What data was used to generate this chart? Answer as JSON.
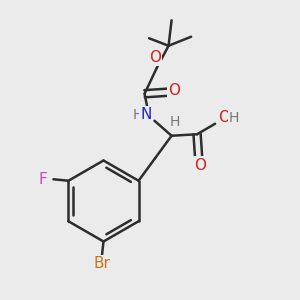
{
  "bg_color": "#ebebeb",
  "line_color": "#2d2d2d",
  "bond_width": 1.8,
  "title": "",
  "colors": {
    "C": "#2d2d2d",
    "N": "#2222cc",
    "O": "#cc2222",
    "F": "#cc44cc",
    "Br": "#c07820",
    "H": "#777777"
  }
}
